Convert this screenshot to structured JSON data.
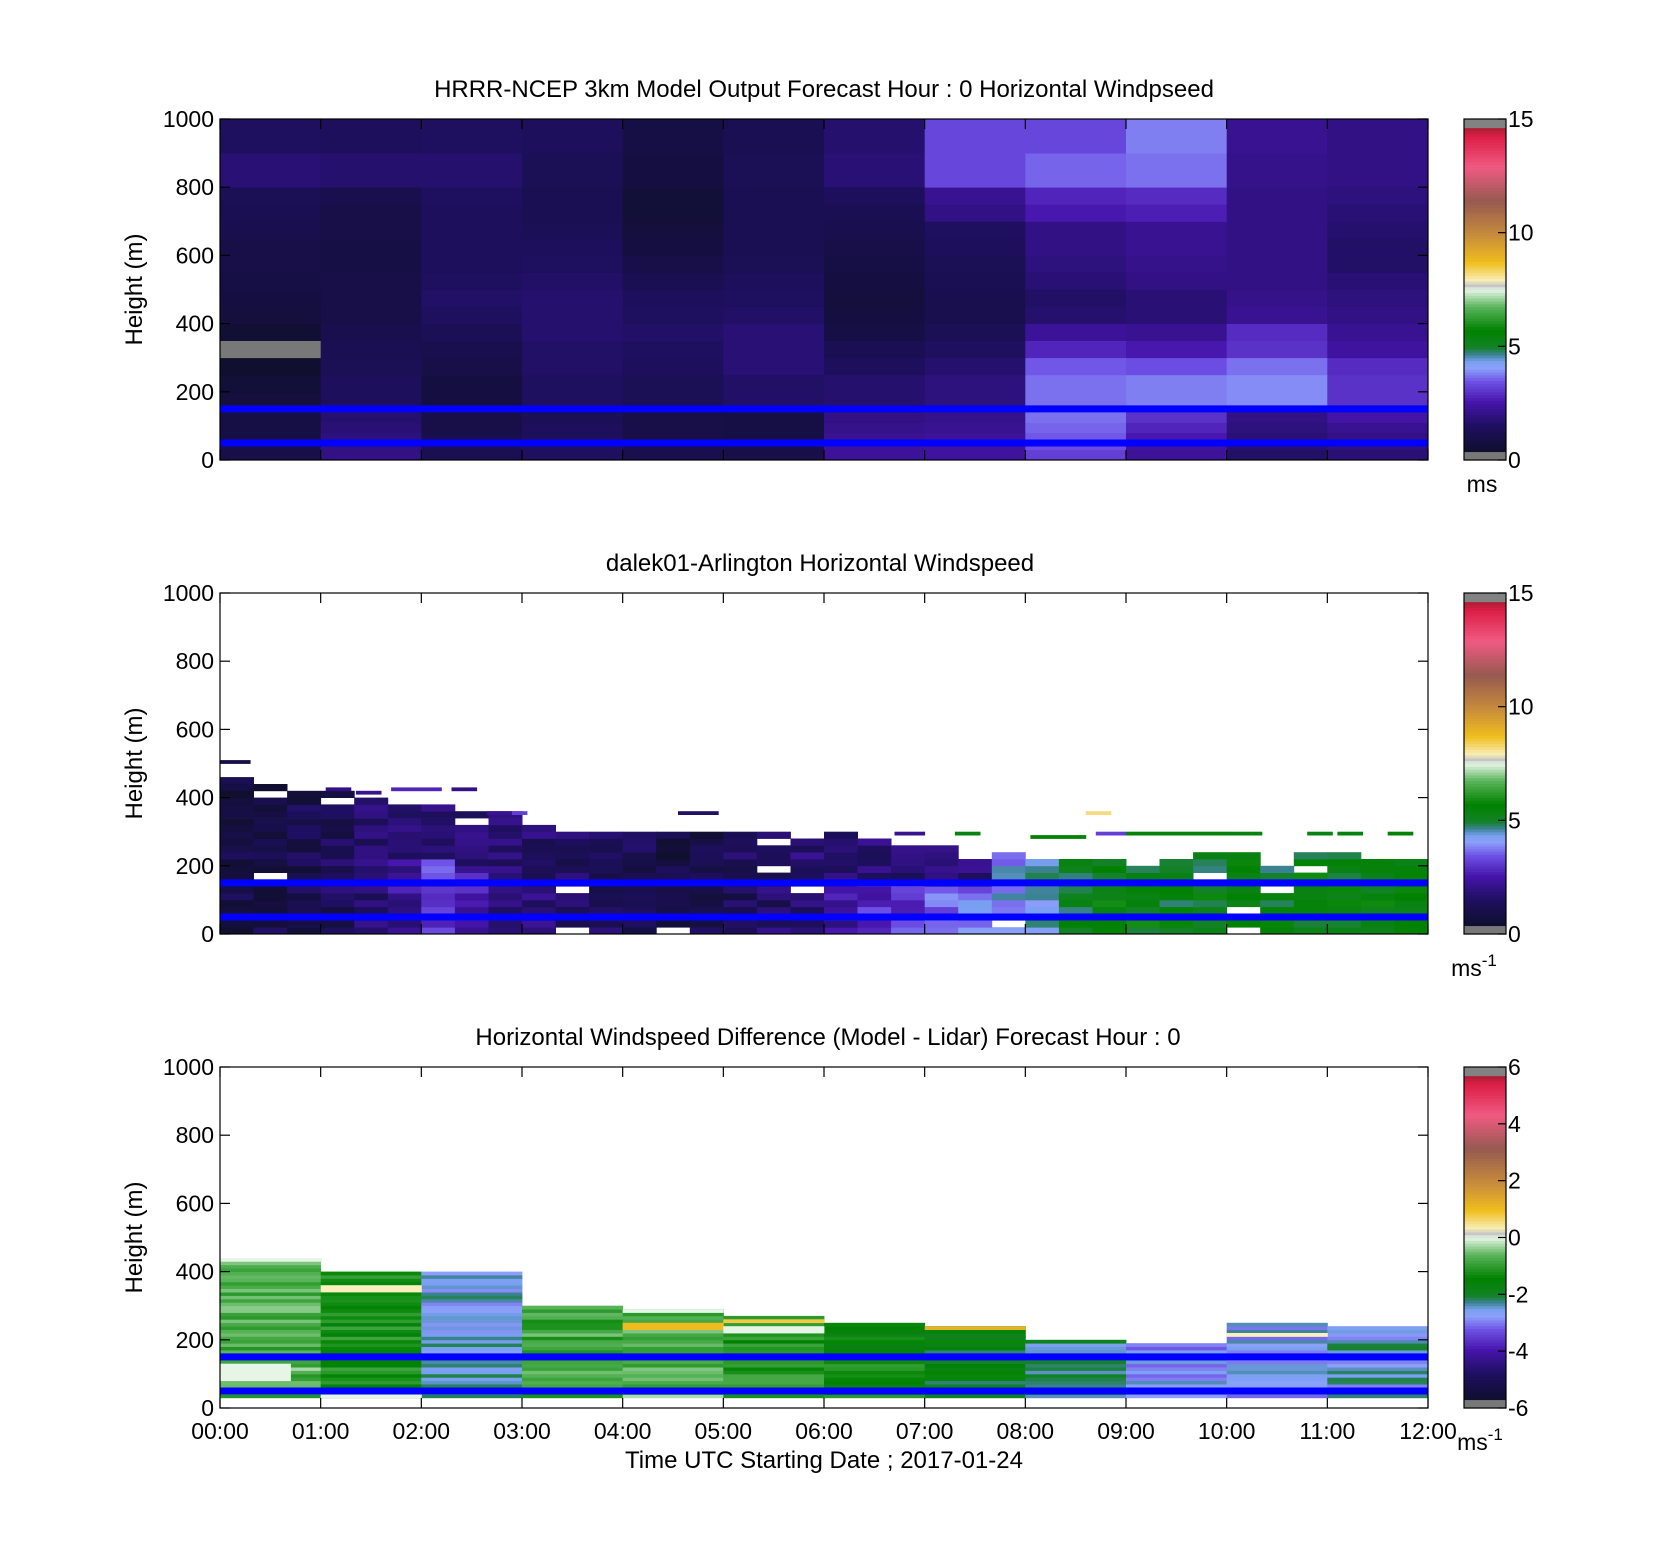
{
  "chart_data": [
    {
      "type": "heatmap",
      "title": "HRRR-NCEP 3km Model Output   Forecast Hour : 0 Horizontal Windpseed",
      "ylabel": "Height (m)",
      "ylim": [
        0,
        1000
      ],
      "yticks": [
        "0",
        "200",
        "400",
        "600",
        "800",
        "1000"
      ],
      "xlim": [
        0,
        12
      ],
      "xticks_labeled": false,
      "colorbar": {
        "ticks": [
          "0",
          "5",
          "10",
          "15"
        ],
        "range": [
          0,
          15
        ],
        "unit": "ms"
      },
      "reference_lines_height_m": [
        50,
        150
      ],
      "grid": {
        "x_edges_hours": [
          0,
          1,
          2,
          3,
          4,
          5,
          6,
          7,
          8,
          9,
          10,
          11,
          12
        ],
        "y_edges_m": [
          0,
          30,
          50,
          80,
          110,
          150,
          200,
          250,
          300,
          350,
          400,
          450,
          500,
          550,
          600,
          650,
          700,
          750,
          800,
          900,
          1000
        ],
        "values_ms": [
          [
            1.0,
            2.0,
            1.2,
            1.5,
            1.1,
            1.0,
            2.3,
            2.4,
            3.2,
            2.3,
            1.6,
            1.8
          ],
          [
            1.0,
            2.0,
            1.2,
            1.5,
            1.1,
            1.0,
            2.3,
            2.4,
            3.4,
            2.4,
            1.7,
            1.9
          ],
          [
            0.9,
            1.9,
            1.1,
            1.4,
            1.0,
            0.9,
            2.2,
            2.3,
            3.5,
            2.6,
            1.8,
            2.0
          ],
          [
            0.9,
            1.8,
            1.0,
            1.4,
            1.0,
            0.9,
            2.1,
            2.2,
            3.6,
            2.8,
            1.9,
            2.2
          ],
          [
            0.9,
            1.7,
            1.0,
            1.3,
            1.0,
            0.9,
            2.0,
            2.1,
            3.7,
            3.0,
            2.0,
            2.5
          ],
          [
            0.7,
            1.4,
            0.8,
            1.5,
            1.3,
            1.6,
            1.7,
            1.9,
            3.7,
            3.8,
            3.9,
            3.0
          ],
          [
            0.6,
            1.4,
            0.8,
            1.5,
            1.3,
            1.6,
            1.7,
            1.9,
            3.7,
            3.8,
            3.9,
            3.0
          ],
          [
            0.4,
            1.3,
            1.0,
            1.6,
            1.4,
            1.8,
            1.4,
            1.7,
            3.5,
            3.4,
            3.7,
            2.9
          ],
          [
            0.3,
            1.2,
            1.1,
            1.6,
            1.5,
            1.8,
            1.2,
            1.5,
            2.8,
            2.6,
            3.0,
            2.4
          ],
          [
            0.5,
            1.1,
            1.3,
            1.7,
            1.6,
            1.8,
            0.9,
            1.3,
            2.3,
            2.2,
            2.9,
            2.2
          ],
          [
            0.7,
            1.0,
            1.5,
            1.7,
            1.5,
            1.6,
            0.8,
            1.1,
            1.7,
            1.8,
            2.2,
            2.0
          ],
          [
            0.8,
            1.0,
            1.6,
            1.7,
            1.4,
            1.5,
            0.7,
            1.1,
            1.6,
            1.8,
            2.1,
            1.9
          ],
          [
            0.9,
            1.0,
            1.5,
            1.6,
            1.2,
            1.4,
            0.8,
            1.2,
            1.8,
            2.0,
            2.0,
            1.8
          ],
          [
            1.0,
            0.9,
            1.4,
            1.5,
            1.0,
            1.3,
            0.9,
            1.3,
            1.9,
            2.1,
            2.0,
            1.6
          ],
          [
            1.0,
            0.9,
            1.4,
            1.4,
            0.8,
            1.2,
            1.0,
            1.4,
            2.0,
            2.2,
            2.0,
            1.6
          ],
          [
            1.1,
            1.0,
            1.4,
            1.3,
            0.7,
            1.2,
            1.1,
            1.5,
            2.0,
            2.2,
            2.0,
            1.7
          ],
          [
            1.2,
            1.0,
            1.4,
            1.2,
            0.6,
            1.2,
            1.2,
            2.0,
            2.6,
            2.7,
            2.0,
            1.8
          ],
          [
            1.3,
            1.1,
            1.5,
            1.2,
            0.6,
            1.2,
            1.4,
            2.2,
            2.8,
            2.9,
            2.0,
            1.9
          ],
          [
            1.8,
            1.7,
            1.7,
            1.3,
            0.8,
            1.3,
            1.8,
            3.3,
            3.6,
            3.7,
            2.1,
            2.0
          ],
          [
            1.5,
            1.4,
            1.5,
            1.4,
            0.9,
            1.2,
            1.7,
            3.3,
            3.3,
            3.8,
            2.2,
            2.0
          ]
        ]
      }
    },
    {
      "type": "heatmap",
      "title": "dalek01-Arlington  Horizontal Windspeed",
      "ylabel": "Height (m)",
      "ylim": [
        0,
        1000
      ],
      "yticks": [
        "0",
        "200",
        "400",
        "600",
        "800",
        "1000"
      ],
      "xlim": [
        0,
        12
      ],
      "xticks_labeled": false,
      "colorbar": {
        "ticks": [
          "0",
          "5",
          "10",
          "15"
        ],
        "range": [
          0,
          15
        ],
        "unit": "ms",
        "unit_exp": "-1"
      },
      "reference_lines_height_m": [
        50,
        150
      ],
      "column_width_hours": 0.3333,
      "row_height_m": 20,
      "columns": [
        {
          "x0": 0.0,
          "top": 450,
          "base": 1.0
        },
        {
          "x0": 0.333,
          "top": 440,
          "base": 1.1
        },
        {
          "x0": 0.667,
          "top": 420,
          "base": 1.2
        },
        {
          "x0": 1.0,
          "top": 410,
          "base": 1.4
        },
        {
          "x0": 1.333,
          "top": 390,
          "base": 1.8
        },
        {
          "x0": 1.667,
          "top": 380,
          "base": 2.3
        },
        {
          "x0": 2.0,
          "top": 370,
          "base": 3.2
        },
        {
          "x0": 2.333,
          "top": 360,
          "base": 2.6
        },
        {
          "x0": 2.667,
          "top": 350,
          "base": 2.0
        },
        {
          "x0": 3.0,
          "top": 320,
          "base": 1.8
        },
        {
          "x0": 3.333,
          "top": 300,
          "base": 1.6
        },
        {
          "x0": 3.667,
          "top": 290,
          "base": 1.5
        },
        {
          "x0": 4.0,
          "top": 290,
          "base": 1.3
        },
        {
          "x0": 4.333,
          "top": 290,
          "base": 1.0
        },
        {
          "x0": 4.667,
          "top": 290,
          "base": 1.2
        },
        {
          "x0": 5.0,
          "top": 300,
          "base": 1.4
        },
        {
          "x0": 5.333,
          "top": 300,
          "base": 1.6
        },
        {
          "x0": 5.667,
          "top": 290,
          "base": 1.9
        },
        {
          "x0": 6.0,
          "top": 290,
          "base": 2.4
        },
        {
          "x0": 6.333,
          "top": 270,
          "base": 3.0
        },
        {
          "x0": 6.667,
          "top": 260,
          "base": 3.3
        },
        {
          "x0": 7.0,
          "top": 250,
          "base": 3.6
        },
        {
          "x0": 7.333,
          "top": 240,
          "base": 3.9
        },
        {
          "x0": 7.667,
          "top": 230,
          "base": 4.2
        },
        {
          "x0": 8.0,
          "top": 220,
          "base": 4.6
        },
        {
          "x0": 8.333,
          "top": 210,
          "base": 5.2
        },
        {
          "x0": 8.667,
          "top": 220,
          "base": 5.6
        },
        {
          "x0": 9.0,
          "top": 200,
          "base": 5.5
        },
        {
          "x0": 9.333,
          "top": 210,
          "base": 5.4
        },
        {
          "x0": 9.667,
          "top": 230,
          "base": 5.4
        },
        {
          "x0": 10.0,
          "top": 230,
          "base": 5.6
        },
        {
          "x0": 10.333,
          "top": 220,
          "base": 5.3
        },
        {
          "x0": 10.667,
          "top": 230,
          "base": 5.5
        },
        {
          "x0": 11.0,
          "top": 230,
          "base": 5.4
        },
        {
          "x0": 11.333,
          "top": 220,
          "base": 5.6
        },
        {
          "x0": 11.667,
          "top": 220,
          "base": 5.5
        }
      ],
      "isolated_cells": [
        {
          "x": 0.0,
          "x1": 0.3,
          "h": 500,
          "v": 1.0
        },
        {
          "x": 1.05,
          "x1": 1.3,
          "h": 420,
          "v": 2.0
        },
        {
          "x": 1.35,
          "x1": 1.6,
          "h": 410,
          "v": 2.2
        },
        {
          "x": 1.7,
          "x1": 2.2,
          "h": 420,
          "v": 2.8
        },
        {
          "x": 2.3,
          "x1": 2.55,
          "h": 420,
          "v": 2.0
        },
        {
          "x": 2.65,
          "x1": 2.9,
          "h": 350,
          "v": 2.2
        },
        {
          "x": 2.9,
          "x1": 3.05,
          "h": 350,
          "v": 3.2
        },
        {
          "x": 4.55,
          "x1": 4.95,
          "h": 350,
          "v": 1.6
        },
        {
          "x": 6.7,
          "x1": 7.0,
          "h": 290,
          "v": 2.2
        },
        {
          "x": 7.3,
          "x1": 7.55,
          "h": 290,
          "v": 5.4
        },
        {
          "x": 8.05,
          "x1": 8.35,
          "h": 280,
          "v": 5.6
        },
        {
          "x": 8.35,
          "x1": 8.6,
          "h": 280,
          "v": 5.6
        },
        {
          "x": 8.6,
          "x1": 8.85,
          "h": 350,
          "v": 8.2
        },
        {
          "x": 8.7,
          "x1": 9.0,
          "h": 290,
          "v": 3.2
        },
        {
          "x": 9.0,
          "x1": 10.0,
          "h": 290,
          "v": 5.6
        },
        {
          "x": 10.0,
          "x1": 10.35,
          "h": 290,
          "v": 5.5
        },
        {
          "x": 10.8,
          "x1": 11.05,
          "h": 290,
          "v": 5.4
        },
        {
          "x": 11.1,
          "x1": 11.35,
          "h": 290,
          "v": 5.5
        },
        {
          "x": 11.6,
          "x1": 11.85,
          "h": 290,
          "v": 5.6
        }
      ]
    },
    {
      "type": "heatmap",
      "title": "Horizontal Windspeed Difference (Model - Lidar) Forecast Hour : 0",
      "xlabel": "Time UTC  Starting Date ; 2017-01-24",
      "ylabel": "Height (m)",
      "ylim": [
        0,
        1000
      ],
      "yticks": [
        "0",
        "200",
        "400",
        "600",
        "800",
        "1000"
      ],
      "xlim": [
        0,
        12
      ],
      "xticks": [
        "00:00",
        "01:00",
        "02:00",
        "03:00",
        "04:00",
        "05:00",
        "06:00",
        "07:00",
        "08:00",
        "09:00",
        "10:00",
        "11:00",
        "12:00"
      ],
      "colorbar": {
        "ticks": [
          "-6",
          "-4",
          "-2",
          "0",
          "2",
          "4",
          "6"
        ],
        "range": [
          -6,
          6
        ],
        "unit": "ms",
        "unit_exp": "-1"
      },
      "reference_lines_height_m": [
        50,
        150
      ],
      "columns": [
        {
          "x0": 0,
          "x1": 1,
          "top": 440,
          "base": -0.7
        },
        {
          "x0": 1,
          "x1": 2,
          "top": 400,
          "base": -1.2
        },
        {
          "x0": 2,
          "x1": 3,
          "top": 400,
          "base": -2.5
        },
        {
          "x0": 3,
          "x1": 4,
          "top": 300,
          "base": -0.8
        },
        {
          "x0": 4,
          "x1": 5,
          "top": 290,
          "base": -0.6
        },
        {
          "x0": 5,
          "x1": 6,
          "top": 270,
          "base": -1.0
        },
        {
          "x0": 6,
          "x1": 7,
          "top": 250,
          "base": -1.4
        },
        {
          "x0": 7,
          "x1": 8,
          "top": 240,
          "base": -1.8
        },
        {
          "x0": 8,
          "x1": 9,
          "top": 200,
          "base": -2.3
        },
        {
          "x0": 9,
          "x1": 10,
          "top": 190,
          "base": -2.8
        },
        {
          "x0": 10,
          "x1": 11,
          "top": 250,
          "base": -2.7
        },
        {
          "x0": 11,
          "x1": 12,
          "top": 240,
          "base": -2.5
        }
      ],
      "special_cells": [
        {
          "x0": 0,
          "x1": 1,
          "y0": 430,
          "y1": 440,
          "v": 0
        },
        {
          "x0": 0,
          "x1": 0.7,
          "y0": 80,
          "y1": 130,
          "v": 0
        },
        {
          "x0": 1,
          "x1": 2,
          "y0": 340,
          "y1": 360,
          "v": 0.3
        },
        {
          "x0": 4,
          "x1": 5,
          "y0": 280,
          "y1": 290,
          "v": 0
        },
        {
          "x0": 4,
          "x1": 5,
          "y0": 230,
          "y1": 250,
          "v": 1.0
        },
        {
          "x0": 5,
          "x1": 6,
          "y0": 250,
          "y1": 260,
          "v": 0.8
        },
        {
          "x0": 5,
          "x1": 6,
          "y0": 220,
          "y1": 240,
          "v": 0
        },
        {
          "x0": 7,
          "x1": 8,
          "y0": 230,
          "y1": 240,
          "v": 1.2
        },
        {
          "x0": 10,
          "x1": 11,
          "y0": 210,
          "y1": 220,
          "v": 0.3
        },
        {
          "x0": 1,
          "x1": 2,
          "y0": 30,
          "y1": 40,
          "v": 0
        }
      ]
    }
  ]
}
